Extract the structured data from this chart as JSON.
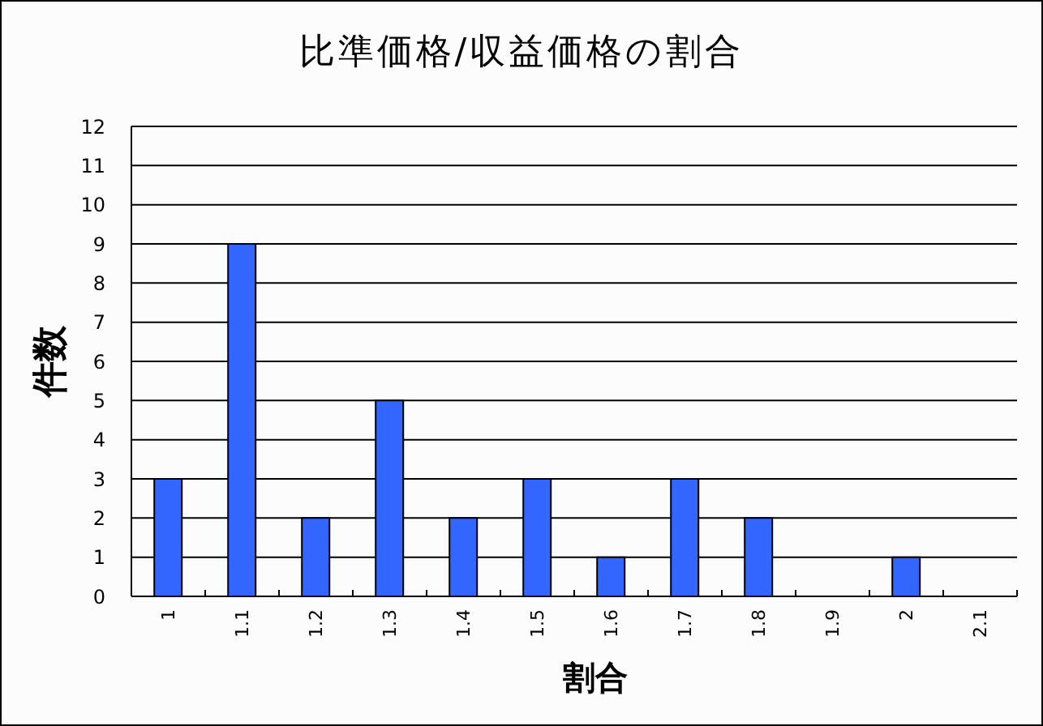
{
  "chart_data": {
    "type": "bar",
    "title": "比準価格/収益価格の割合",
    "xlabel": "割合",
    "ylabel": "件数",
    "categories": [
      "1",
      "1.1",
      "1.2",
      "1.3",
      "1.4",
      "1.5",
      "1.6",
      "1.7",
      "1.8",
      "1.9",
      "2",
      "2.1"
    ],
    "values": [
      3,
      9,
      2,
      5,
      2,
      3,
      1,
      3,
      2,
      0,
      1,
      0
    ],
    "color": "#3366ff",
    "ylim": [
      0,
      12
    ],
    "yticks": [
      0,
      1,
      2,
      3,
      4,
      5,
      6,
      7,
      8,
      9,
      10,
      11,
      12
    ],
    "grid": "y"
  }
}
